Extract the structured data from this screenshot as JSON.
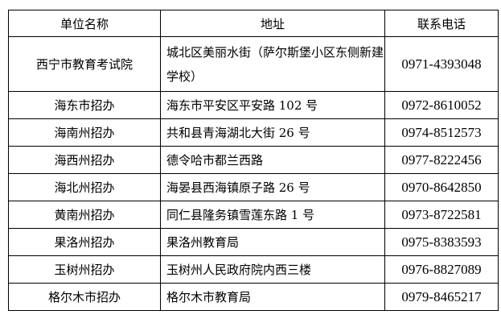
{
  "headers": [
    "单位名称",
    "地址",
    "联系电话"
  ],
  "rows": [
    {
      "name": "西宁市教育考试院",
      "address": "城北区美丽水街（萨尔斯堡小区东侧新建学校）",
      "phone": "0971-4393048"
    },
    {
      "name": "海东市招办",
      "address": "海东市平安区平安路 102 号",
      "phone": "0972-8610052"
    },
    {
      "name": "海南州招办",
      "address": "共和县青海湖北大街 26 号",
      "phone": "0974-8512573"
    },
    {
      "name": "海西州招办",
      "address": "德令哈市都兰西路",
      "phone": "0977-8222456"
    },
    {
      "name": "海北州招办",
      "address": "海晏县西海镇原子路 26 号",
      "phone": "0970-8642850"
    },
    {
      "name": "黄南州招办",
      "address": "同仁县隆务镇雪莲东路 1 号",
      "phone": "0973-8722581"
    },
    {
      "name": "果洛州招办",
      "address": "果洛州教育局",
      "phone": "0975-8383593"
    },
    {
      "name": "玉树州招办",
      "address": "玉树州人民政府院内西三楼",
      "phone": "0976-8827089"
    },
    {
      "name": "格尔木市招办",
      "address": "格尔木市教育局",
      "phone": "0979-8465217"
    }
  ]
}
